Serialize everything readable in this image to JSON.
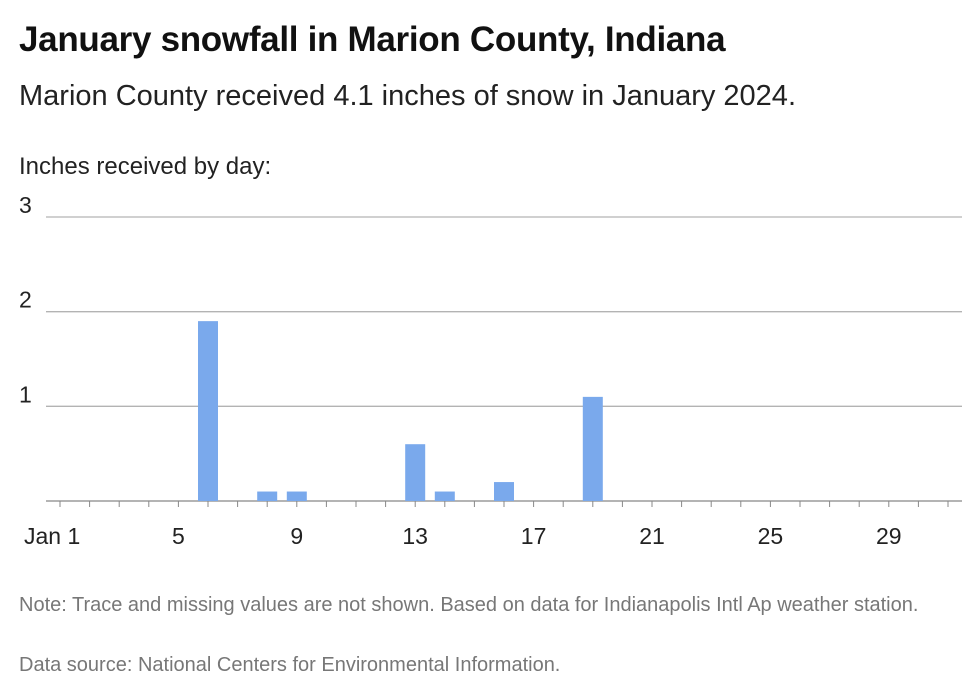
{
  "title": "January snowfall in Marion County, Indiana",
  "subtitle": "Marion County received 4.1 inches of snow in January 2024.",
  "note": "Note: Trace and missing values are not shown. Based on data for Indianapolis Intl Ap weather station.",
  "source": "Data source: National Centers for Environmental Information.",
  "chart_data": {
    "type": "bar",
    "ylabel": "Inches received by day:",
    "xlabel": "",
    "x_ticks": [
      {
        "day": 1,
        "label": "Jan 1"
      },
      {
        "day": 5,
        "label": "5"
      },
      {
        "day": 9,
        "label": "9"
      },
      {
        "day": 13,
        "label": "13"
      },
      {
        "day": 17,
        "label": "17"
      },
      {
        "day": 21,
        "label": "21"
      },
      {
        "day": 25,
        "label": "25"
      },
      {
        "day": 29,
        "label": "29"
      }
    ],
    "y_ticks": [
      1,
      2,
      3
    ],
    "xlim": [
      1,
      31
    ],
    "ylim": [
      0,
      3
    ],
    "grid": true,
    "bar_color": "#7aa9ec",
    "days": [
      6,
      8,
      9,
      13,
      14,
      16,
      19
    ],
    "values": [
      1.9,
      0.1,
      0.1,
      0.6,
      0.1,
      0.2,
      1.1
    ]
  }
}
